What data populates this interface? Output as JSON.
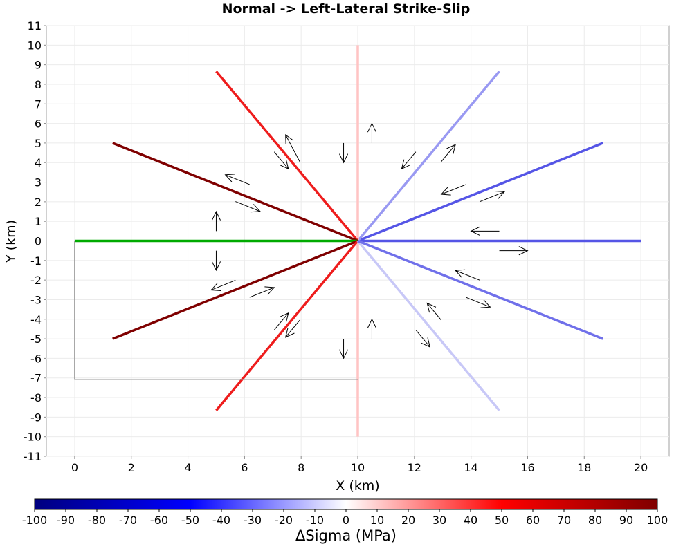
{
  "chart_data": {
    "type": "line",
    "title": "Normal -> Left-Lateral Strike-Slip",
    "xlabel": "X (km)",
    "ylabel": "Y (km)",
    "xlim": [
      -1,
      21
    ],
    "ylim": [
      -11,
      11
    ],
    "x_ticks": [
      0,
      2,
      4,
      6,
      8,
      10,
      12,
      14,
      16,
      18,
      20
    ],
    "y_ticks": [
      -11,
      -10,
      -9,
      -8,
      -7,
      -6,
      -5,
      -4,
      -3,
      -2,
      -1,
      0,
      1,
      2,
      3,
      4,
      5,
      6,
      7,
      8,
      9,
      10,
      11
    ],
    "grid": true,
    "series": [
      {
        "x": [
          10,
          20
        ],
        "y": [
          0,
          0
        ],
        "color": "#5555e6"
      },
      {
        "x": [
          10,
          18.66
        ],
        "y": [
          0,
          5
        ],
        "color": "#5555e6"
      },
      {
        "x": [
          10,
          15
        ],
        "y": [
          0,
          8.66
        ],
        "color": "#9999f2"
      },
      {
        "x": [
          10,
          10
        ],
        "y": [
          -10,
          10
        ],
        "color": "#ffc4c4"
      },
      {
        "x": [
          10,
          5
        ],
        "y": [
          0,
          8.66
        ],
        "color": "#ee1c1c"
      },
      {
        "x": [
          10,
          1.34
        ],
        "y": [
          0,
          5
        ],
        "color": "#7f0000"
      },
      {
        "x": [
          10,
          0
        ],
        "y": [
          0,
          0
        ],
        "color": "#00aa00"
      },
      {
        "x": [
          10,
          1.34
        ],
        "y": [
          0,
          -5
        ],
        "color": "#7f0000"
      },
      {
        "x": [
          10,
          5
        ],
        "y": [
          0,
          -8.66
        ],
        "color": "#ee1c1c"
      },
      {
        "x": [
          10,
          15
        ],
        "y": [
          0,
          -8.66
        ],
        "color": "#c8c8f7"
      },
      {
        "x": [
          10,
          18.66
        ],
        "y": [
          0,
          -5
        ],
        "color": "#7070ea"
      },
      {
        "x": [
          0,
          0,
          10
        ],
        "y": [
          0,
          -7.07,
          -7.07
        ],
        "color": "#999999"
      }
    ],
    "arrows": [
      {
        "from": [
          10.5,
          5
        ],
        "to": [
          10.5,
          6
        ]
      },
      {
        "from": [
          9.5,
          5
        ],
        "to": [
          9.5,
          4
        ]
      },
      {
        "from": [
          12.05,
          4.55
        ],
        "to": [
          11.55,
          3.68
        ]
      },
      {
        "from": [
          12.95,
          4.05
        ],
        "to": [
          13.45,
          4.92
        ]
      },
      {
        "from": [
          13.82,
          2.88
        ],
        "to": [
          12.95,
          2.38
        ]
      },
      {
        "from": [
          14.32,
          2.01
        ],
        "to": [
          15.18,
          2.51
        ]
      },
      {
        "from": [
          15,
          0.5
        ],
        "to": [
          14,
          0.5
        ]
      },
      {
        "from": [
          15,
          -0.5
        ],
        "to": [
          16,
          -0.5
        ]
      },
      {
        "from": [
          14.32,
          -2.01
        ],
        "to": [
          13.45,
          -1.51
        ]
      },
      {
        "from": [
          13.82,
          -2.88
        ],
        "to": [
          14.68,
          -3.38
        ]
      },
      {
        "from": [
          12.95,
          -4.05
        ],
        "to": [
          12.45,
          -3.18
        ]
      },
      {
        "from": [
          12.05,
          -4.55
        ],
        "to": [
          12.55,
          -5.42
        ]
      },
      {
        "from": [
          10.5,
          -5
        ],
        "to": [
          10.5,
          -4
        ]
      },
      {
        "from": [
          9.5,
          -5
        ],
        "to": [
          9.5,
          -6
        ]
      },
      {
        "from": [
          7.95,
          -4.05
        ],
        "to": [
          7.45,
          -4.92
        ]
      },
      {
        "from": [
          7.05,
          -4.55
        ],
        "to": [
          7.55,
          -3.68
        ]
      },
      {
        "from": [
          6.18,
          -2.88
        ],
        "to": [
          7.05,
          -2.38
        ]
      },
      {
        "from": [
          5.68,
          -2.01
        ],
        "to": [
          4.82,
          -2.51
        ]
      },
      {
        "from": [
          5,
          -0.5
        ],
        "to": [
          5,
          -1.5
        ]
      },
      {
        "from": [
          5,
          0.5
        ],
        "to": [
          5,
          1.5
        ]
      },
      {
        "from": [
          5.68,
          2.01
        ],
        "to": [
          6.55,
          1.51
        ]
      },
      {
        "from": [
          6.18,
          2.88
        ],
        "to": [
          5.32,
          3.38
        ]
      },
      {
        "from": [
          7.05,
          4.55
        ],
        "to": [
          7.55,
          3.68
        ]
      },
      {
        "from": [
          7.95,
          4.05
        ],
        "to": [
          7.45,
          5.42
        ]
      }
    ],
    "colorbar": {
      "label": "ΔSigma (MPa)",
      "range": [
        -100,
        100
      ],
      "ticks": [
        -100,
        -90,
        -80,
        -70,
        -60,
        -50,
        -40,
        -30,
        -20,
        -10,
        0,
        10,
        20,
        30,
        40,
        50,
        60,
        70,
        80,
        90,
        100
      ],
      "stops": [
        "#00007f",
        "#0000ff",
        "#ffffff",
        "#ff0000",
        "#7f0000"
      ]
    }
  }
}
